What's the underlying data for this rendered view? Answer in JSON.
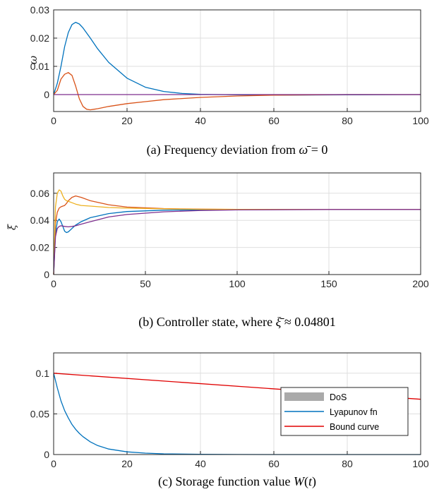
{
  "colors": {
    "blue": "#0072bd",
    "orange": "#d95319",
    "yellow": "#edb120",
    "purple": "#7e2f8e",
    "red": "#e00000",
    "gray": "#aaaaaa",
    "axis": "#262626",
    "grid": "#dfdfdf"
  },
  "chart_data": [
    {
      "type": "line",
      "ylabel": "ω",
      "caption": "(a) Frequency deviation from ω̄ = 0",
      "xlim": [
        0,
        100
      ],
      "ylim": [
        -0.006,
        0.03
      ],
      "xticks": [
        0,
        20,
        40,
        60,
        80,
        100
      ],
      "xtick_labels": [
        "0",
        "20",
        "40",
        "60",
        "80",
        "100"
      ],
      "yticks": [
        0,
        0.01,
        0.02,
        0.03
      ],
      "ytick_labels": [
        "0",
        "0.01",
        "0.02",
        "0.03"
      ],
      "grid": true,
      "series": [
        {
          "color": "#0072bd",
          "x": [
            0,
            1,
            2,
            3,
            4,
            5,
            6,
            7,
            8,
            10,
            12,
            15,
            20,
            25,
            30,
            35,
            40,
            50,
            60,
            80,
            100
          ],
          "y": [
            0,
            0.004,
            0.01,
            0.017,
            0.022,
            0.0248,
            0.0256,
            0.025,
            0.0236,
            0.02,
            0.0162,
            0.0114,
            0.0058,
            0.0026,
            0.0011,
            0.0004,
            0.0001,
            -0.0001,
            -0.0002,
            -0.0001,
            0
          ]
        },
        {
          "color": "#d95319",
          "x": [
            0,
            1,
            2,
            3,
            4,
            5,
            6,
            7,
            8,
            9,
            10,
            11,
            12,
            15,
            20,
            25,
            30,
            40,
            50,
            60,
            80,
            100
          ],
          "y": [
            0,
            0.0015,
            0.0055,
            0.0072,
            0.0078,
            0.0068,
            0.003,
            -0.0015,
            -0.0042,
            -0.0052,
            -0.0054,
            -0.0052,
            -0.005,
            -0.0042,
            -0.0032,
            -0.0025,
            -0.0018,
            -0.001,
            -0.0005,
            -0.0002,
            0,
            0
          ]
        },
        {
          "color": "#7e2f8e",
          "x": [
            0,
            100
          ],
          "y": [
            0,
            0
          ]
        }
      ]
    },
    {
      "type": "line",
      "ylabel": "ξ",
      "caption": "(b) Controller state, where ξ̄ ≈ 0.04801",
      "xlim": [
        0,
        200
      ],
      "ylim": [
        0,
        0.075
      ],
      "xticks": [
        0,
        50,
        100,
        150,
        200
      ],
      "xtick_labels": [
        "0",
        "50",
        "100",
        "150",
        "200"
      ],
      "yticks": [
        0,
        0.02,
        0.04,
        0.06
      ],
      "ytick_labels": [
        "0",
        "0.02",
        "0.04",
        "0.06"
      ],
      "grid": true,
      "series": [
        {
          "color": "#0072bd",
          "x": [
            0,
            1,
            2,
            3,
            4,
            5,
            6,
            7,
            8,
            10,
            12,
            15,
            20,
            30,
            40,
            60,
            80,
            100,
            150,
            200
          ],
          "y": [
            0,
            0.03,
            0.039,
            0.041,
            0.039,
            0.0355,
            0.032,
            0.031,
            0.0315,
            0.034,
            0.0365,
            0.039,
            0.042,
            0.045,
            0.0465,
            0.0475,
            0.0478,
            0.048,
            0.048,
            0.048
          ]
        },
        {
          "color": "#d95319",
          "x": [
            0,
            1,
            2,
            3,
            4,
            5,
            6,
            7,
            8,
            10,
            12,
            15,
            20,
            30,
            40,
            60,
            80,
            100,
            150,
            200
          ],
          "y": [
            0,
            0.038,
            0.046,
            0.049,
            0.05,
            0.0505,
            0.051,
            0.0525,
            0.0545,
            0.057,
            0.058,
            0.057,
            0.0545,
            0.0515,
            0.0498,
            0.0487,
            0.0483,
            0.0481,
            0.048,
            0.048
          ]
        },
        {
          "color": "#edb120",
          "x": [
            0,
            1,
            2,
            3,
            4,
            5,
            6,
            7,
            8,
            10,
            12,
            15,
            20,
            30,
            40,
            60,
            80,
            100,
            150,
            200
          ],
          "y": [
            0,
            0.05,
            0.06,
            0.0625,
            0.0615,
            0.058,
            0.0555,
            0.0545,
            0.054,
            0.053,
            0.052,
            0.051,
            0.0505,
            0.0495,
            0.049,
            0.0485,
            0.0482,
            0.0481,
            0.048,
            0.048
          ]
        },
        {
          "color": "#7e2f8e",
          "x": [
            0,
            1,
            2,
            3,
            4,
            5,
            6,
            8,
            10,
            12,
            15,
            20,
            30,
            40,
            60,
            80,
            100,
            150,
            200
          ],
          "y": [
            0,
            0.028,
            0.034,
            0.0355,
            0.036,
            0.0358,
            0.0355,
            0.0352,
            0.0355,
            0.036,
            0.0372,
            0.039,
            0.0425,
            0.0443,
            0.0463,
            0.0473,
            0.0477,
            0.048,
            0.048
          ]
        }
      ]
    },
    {
      "type": "line",
      "caption": "(c) Storage function value W(t)",
      "xlim": [
        0,
        100
      ],
      "ylim": [
        0,
        0.125
      ],
      "xticks": [
        0,
        20,
        40,
        60,
        80,
        100
      ],
      "xtick_labels": [
        "0",
        "20",
        "40",
        "60",
        "80",
        "100"
      ],
      "yticks": [
        0,
        0.05,
        0.1
      ],
      "ytick_labels": [
        "0",
        "0.05",
        "0.1"
      ],
      "grid": true,
      "legend": {
        "placement": "right",
        "entries": [
          {
            "label": "DoS",
            "kind": "patch",
            "color": "#aaaaaa"
          },
          {
            "label": "Lyapunov fn",
            "kind": "line",
            "color": "#0072bd"
          },
          {
            "label": "Bound curve",
            "kind": "line",
            "color": "#e00000"
          }
        ]
      },
      "series": [
        {
          "name": "Lyapunov fn",
          "color": "#0072bd",
          "x": [
            0,
            1,
            2,
            3,
            4,
            5,
            6,
            7,
            8,
            10,
            12,
            15,
            20,
            25,
            30,
            40,
            50,
            60,
            80,
            100
          ],
          "y": [
            0.1,
            0.082,
            0.066,
            0.054,
            0.045,
            0.037,
            0.031,
            0.026,
            0.022,
            0.0155,
            0.011,
            0.0068,
            0.0033,
            0.0017,
            0.0009,
            0.0003,
            0.0001,
            0,
            0,
            0
          ]
        },
        {
          "name": "Bound curve",
          "color": "#e00000",
          "x": [
            0,
            100
          ],
          "y": [
            0.1,
            0.068
          ]
        }
      ]
    }
  ]
}
